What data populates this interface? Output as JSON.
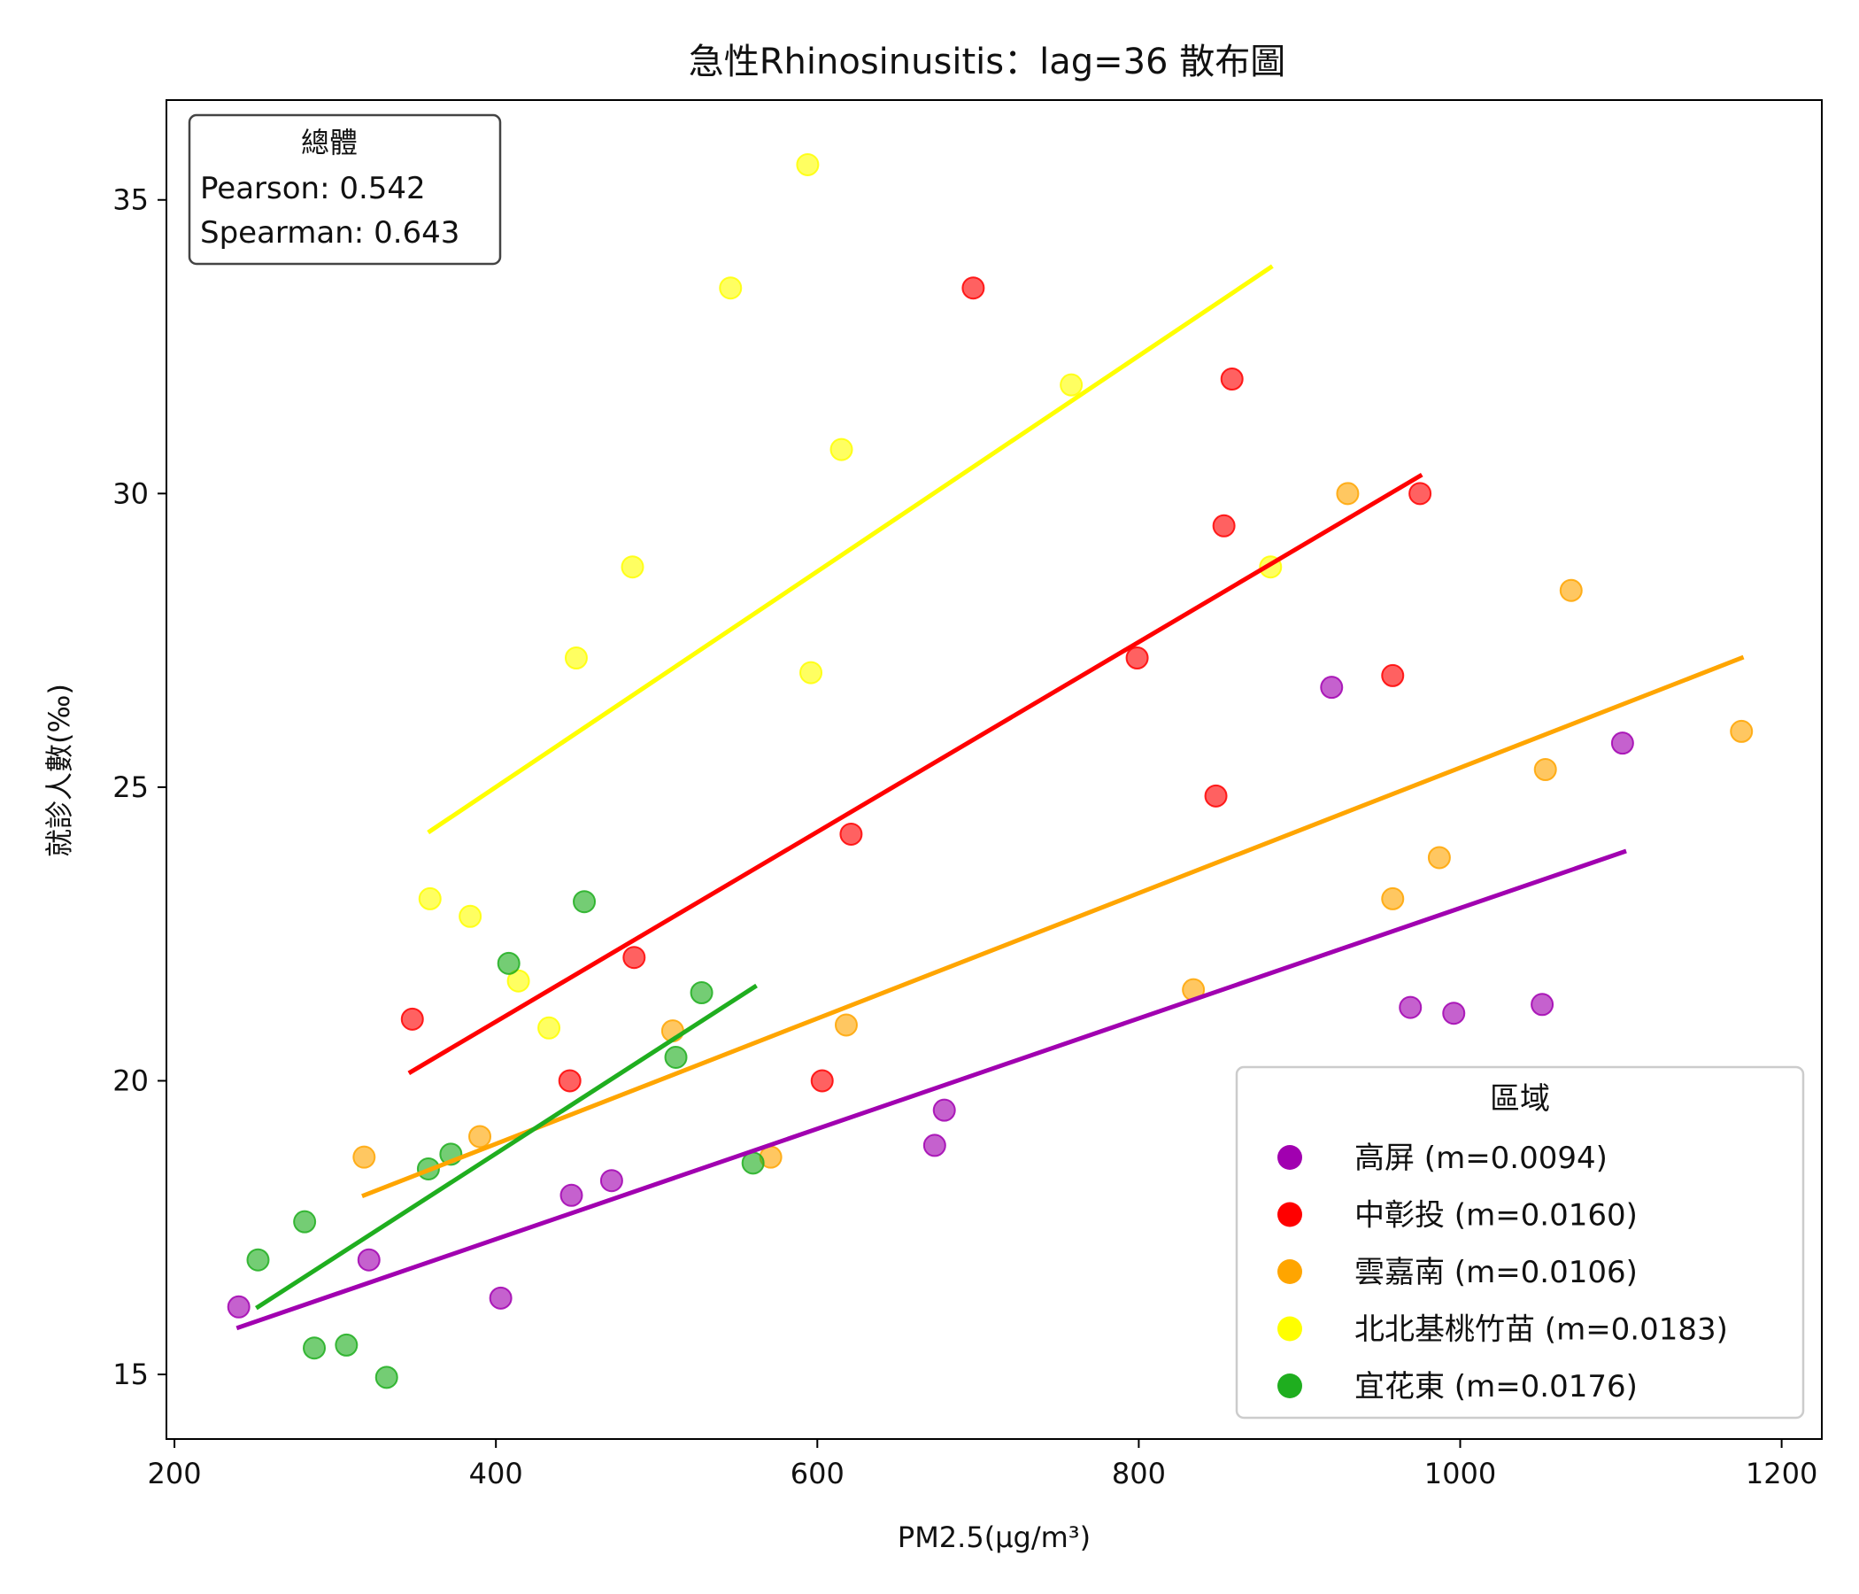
{
  "chart_data": {
    "type": "scatter",
    "title": "急性Rhinosinusitis：lag=36 散布圖",
    "xlabel": "PM2.5(μg/m³)",
    "ylabel": "就診人數(‰)",
    "xlim": [
      195,
      1225
    ],
    "ylim": [
      13.9,
      36.7
    ],
    "xticks": [
      200,
      400,
      600,
      800,
      1000,
      1200
    ],
    "yticks": [
      15,
      20,
      25,
      30,
      35
    ],
    "grid": false,
    "stats_box": {
      "title": "總體",
      "pearson": "Pearson: 0.542",
      "spearman": "Spearman: 0.643",
      "placement": "top-left"
    },
    "legend": {
      "title": "區域",
      "placement": "bottom-right"
    },
    "series": [
      {
        "name": "高屏 (m=0.0094)",
        "color": "#a100b0",
        "points": [
          [
            240,
            16.15
          ],
          [
            321,
            16.95
          ],
          [
            403,
            16.3
          ],
          [
            447,
            18.05
          ],
          [
            472,
            18.3
          ],
          [
            673,
            18.9
          ],
          [
            679,
            19.5
          ],
          [
            920,
            26.7
          ],
          [
            969,
            21.25
          ],
          [
            996,
            21.15
          ],
          [
            1051,
            21.3
          ],
          [
            1101,
            25.75
          ]
        ],
        "fit": [
          [
            240,
            15.8
          ],
          [
            1102,
            23.9
          ]
        ]
      },
      {
        "name": "中彰投 (m=0.0160)",
        "color": "#ff0000",
        "points": [
          [
            348,
            21.05
          ],
          [
            446,
            20.0
          ],
          [
            486,
            22.1
          ],
          [
            603,
            20.0
          ],
          [
            621,
            24.2
          ],
          [
            697,
            33.5
          ],
          [
            799,
            27.2
          ],
          [
            848,
            24.85
          ],
          [
            853,
            29.45
          ],
          [
            858,
            31.95
          ],
          [
            958,
            26.9
          ],
          [
            975,
            30.0
          ]
        ],
        "fit": [
          [
            347,
            20.15
          ],
          [
            975,
            30.3
          ]
        ]
      },
      {
        "name": "雲嘉南 (m=0.0106)",
        "color": "#ffa500",
        "points": [
          [
            318,
            18.7
          ],
          [
            390,
            19.05
          ],
          [
            510,
            20.85
          ],
          [
            571,
            18.7
          ],
          [
            618,
            20.95
          ],
          [
            834,
            21.55
          ],
          [
            930,
            30.0
          ],
          [
            958,
            23.1
          ],
          [
            987,
            23.8
          ],
          [
            1053,
            25.3
          ],
          [
            1069,
            28.35
          ],
          [
            1175,
            25.95
          ]
        ],
        "fit": [
          [
            318,
            18.05
          ],
          [
            1175,
            27.2
          ]
        ]
      },
      {
        "name": "北北基桃竹苗 (m=0.0183)",
        "color": "#ffff00",
        "points": [
          [
            359,
            23.1
          ],
          [
            384,
            22.8
          ],
          [
            414,
            21.7
          ],
          [
            433,
            20.9
          ],
          [
            450,
            27.2
          ],
          [
            485,
            28.75
          ],
          [
            546,
            33.5
          ],
          [
            594,
            35.6
          ],
          [
            596,
            26.95
          ],
          [
            615,
            30.75
          ],
          [
            758,
            31.85
          ],
          [
            882,
            28.75
          ]
        ],
        "fit": [
          [
            359,
            24.25
          ],
          [
            882,
            33.85
          ]
        ]
      },
      {
        "name": "宜花東 (m=0.0176)",
        "color": "#1fae1f",
        "points": [
          [
            252,
            16.95
          ],
          [
            281,
            17.6
          ],
          [
            287,
            15.45
          ],
          [
            307,
            15.5
          ],
          [
            332,
            14.95
          ],
          [
            358,
            18.5
          ],
          [
            372,
            18.75
          ],
          [
            408,
            22.0
          ],
          [
            455,
            23.05
          ],
          [
            512,
            20.4
          ],
          [
            528,
            21.5
          ],
          [
            560,
            18.6
          ]
        ],
        "fit": [
          [
            252,
            16.15
          ],
          [
            561,
            21.6
          ]
        ]
      }
    ]
  }
}
